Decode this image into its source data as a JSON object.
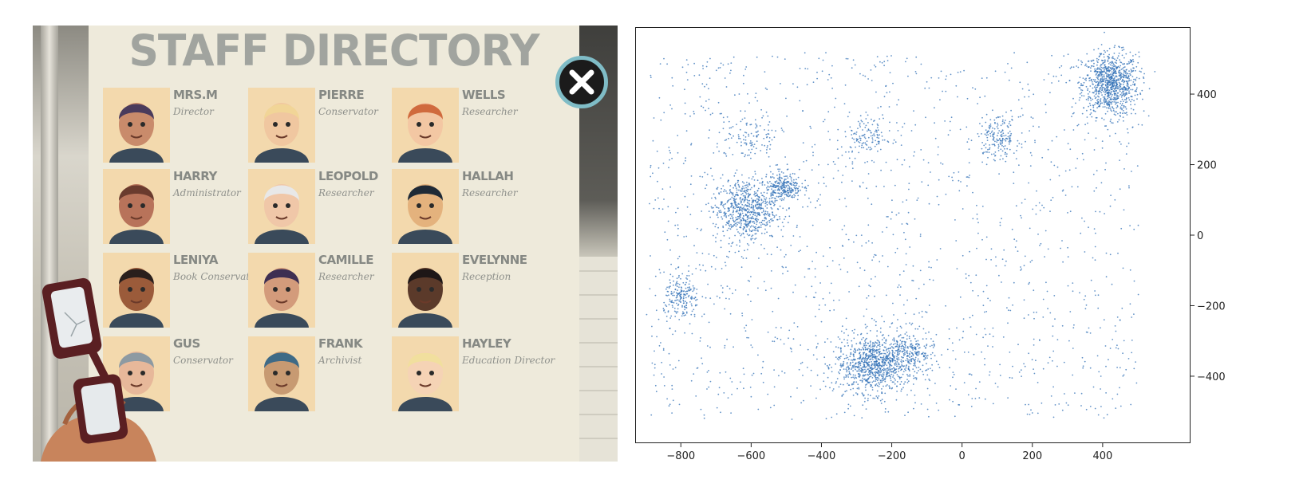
{
  "game": {
    "title": "STAFF DIRECTORY",
    "close_icon": "close-x-icon",
    "staff": [
      {
        "name": "MRS.M",
        "role": "Director",
        "icon": "portrait-mrs-m"
      },
      {
        "name": "PIERRE",
        "role": "Conservator",
        "icon": "portrait-pierre"
      },
      {
        "name": "WELLS",
        "role": "Researcher",
        "icon": "portrait-wells"
      },
      {
        "name": "HARRY",
        "role": "Administrator",
        "icon": "portrait-harry"
      },
      {
        "name": "LEOPOLD",
        "role": "Researcher",
        "icon": "portrait-leopold"
      },
      {
        "name": "HALLAH",
        "role": "Researcher",
        "icon": "portrait-hallah"
      },
      {
        "name": "LENIYA",
        "role": "Book Conservator",
        "icon": "portrait-leniya"
      },
      {
        "name": "CAMILLE",
        "role": "Researcher",
        "icon": "portrait-camille"
      },
      {
        "name": "EVELYNNE",
        "role": "Reception",
        "icon": "portrait-evelynne"
      },
      {
        "name": "GUS",
        "role": "Conservator",
        "icon": "portrait-gus"
      },
      {
        "name": "FRANK",
        "role": "Archivist",
        "icon": "portrait-frank"
      },
      {
        "name": "HAYLEY",
        "role": "Education Director",
        "icon": "portrait-hayley"
      }
    ],
    "colors": {
      "sheet": "#eeeadb",
      "title": "#a1a49f",
      "close_ring": "#7fbcc6"
    }
  },
  "chart_data": {
    "type": "scatter",
    "title": "",
    "xlabel": "",
    "ylabel": "",
    "xlim": [
      -930,
      650
    ],
    "ylim": [
      -590,
      590
    ],
    "x_ticks": [
      "−800",
      "−600",
      "−400",
      "−200",
      "0",
      "200",
      "400"
    ],
    "y_ticks": [
      "400",
      "200",
      "0",
      "−200",
      "−400"
    ],
    "y_axis_side": "right",
    "grid": false,
    "marker_color": "#2f6fb5",
    "clusters": [
      {
        "center": [
          420,
          430
        ],
        "spread": [
          40,
          45
        ],
        "points": 900
      },
      {
        "center": [
          -250,
          -365
        ],
        "spread": [
          55,
          40
        ],
        "points": 900
      },
      {
        "center": [
          -620,
          75
        ],
        "spread": [
          45,
          45
        ],
        "points": 650
      },
      {
        "center": [
          -510,
          140
        ],
        "spread": [
          25,
          20
        ],
        "points": 250
      },
      {
        "center": [
          -800,
          -180
        ],
        "spread": [
          25,
          35
        ],
        "points": 200
      },
      {
        "center": [
          100,
          280
        ],
        "spread": [
          30,
          30
        ],
        "points": 180
      },
      {
        "center": [
          -270,
          280
        ],
        "spread": [
          35,
          30
        ],
        "points": 120
      },
      {
        "center": [
          -600,
          280
        ],
        "spread": [
          40,
          30
        ],
        "points": 100
      },
      {
        "center": [
          -150,
          -330
        ],
        "spread": [
          35,
          30
        ],
        "points": 200
      }
    ],
    "background_points": 1400,
    "background_range": {
      "x": [
        -900,
        500
      ],
      "y": [
        -520,
        520
      ]
    }
  }
}
